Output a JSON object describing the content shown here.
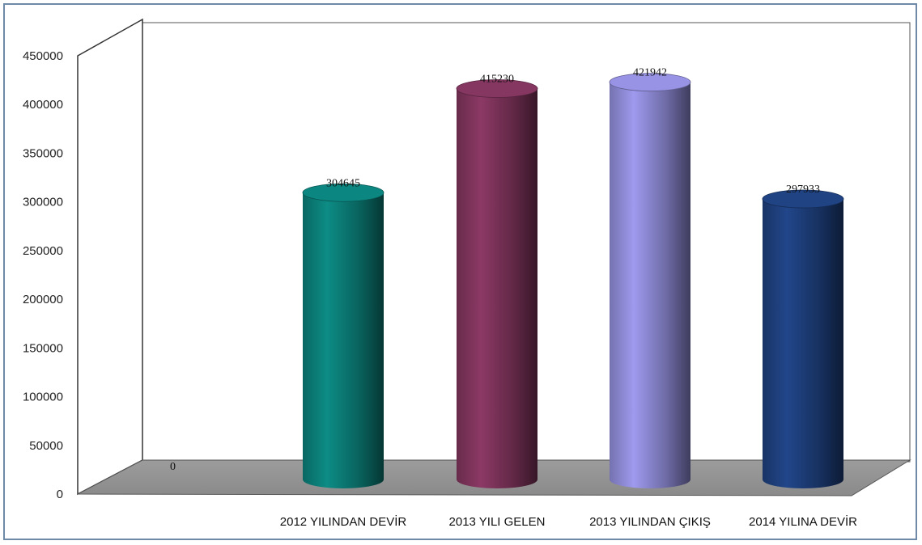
{
  "chart_data": {
    "type": "bar",
    "categories": [
      "",
      "2012 YILINDAN DEVİR",
      "2013 YILI GELEN",
      "2013 YILINDAN  ÇIKIŞ",
      "2014 YILINA  DEVİR"
    ],
    "values": [
      0,
      304645,
      415230,
      421942,
      297933
    ],
    "data_labels": [
      "0",
      "304645",
      "415230",
      "421942",
      "297933"
    ],
    "colors": [
      "#8a8a8a",
      "#0b7a74",
      "#7a3258",
      "#8a86cf",
      "#1d3d78"
    ],
    "ylim": [
      0,
      450000
    ],
    "yticks": [
      "0",
      "50000",
      "100000",
      "150000",
      "200000",
      "250000",
      "300000",
      "350000",
      "400000",
      "450000"
    ],
    "grid": false,
    "style": "3d-cylinder"
  }
}
